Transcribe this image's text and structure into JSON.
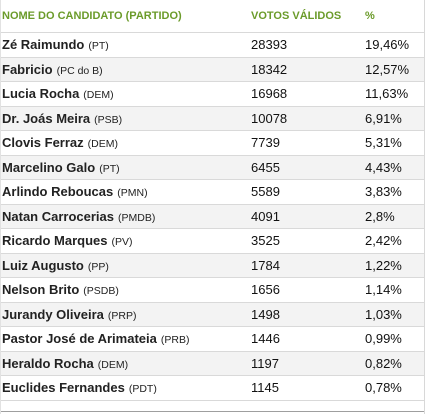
{
  "header": {
    "name": "NOME DO CANDIDATO (PARTIDO)",
    "votes": "VOTOS VÁLIDOS",
    "pct": "%"
  },
  "rows": [
    {
      "name": "Zé Raimundo",
      "party": "(PT)",
      "votes": "28393",
      "pct": "19,46%"
    },
    {
      "name": "Fabricio",
      "party": "(PC do B)",
      "votes": "18342",
      "pct": "12,57%"
    },
    {
      "name": "Lucia Rocha",
      "party": "(DEM)",
      "votes": "16968",
      "pct": "11,63%"
    },
    {
      "name": "Dr. Joás Meira",
      "party": "(PSB)",
      "votes": "10078",
      "pct": "6,91%"
    },
    {
      "name": "Clovis Ferraz",
      "party": "(DEM)",
      "votes": "7739",
      "pct": "5,31%"
    },
    {
      "name": "Marcelino Galo",
      "party": "(PT)",
      "votes": "6455",
      "pct": "4,43%"
    },
    {
      "name": "Arlindo Reboucas",
      "party": "(PMN)",
      "votes": "5589",
      "pct": "3,83%"
    },
    {
      "name": "Natan Carrocerias",
      "party": "(PMDB)",
      "votes": "4091",
      "pct": "2,8%"
    },
    {
      "name": "Ricardo Marques",
      "party": "(PV)",
      "votes": "3525",
      "pct": "2,42%"
    },
    {
      "name": "Luiz Augusto",
      "party": "(PP)",
      "votes": "1784",
      "pct": "1,22%"
    },
    {
      "name": "Nelson Brito",
      "party": "(PSDB)",
      "votes": "1656",
      "pct": "1,14%"
    },
    {
      "name": "Jurandy Oliveira",
      "party": "(PRP)",
      "votes": "1498",
      "pct": "1,03%"
    },
    {
      "name": "Pastor José de Arimateia",
      "party": "(PRB)",
      "votes": "1446",
      "pct": "0,99%"
    },
    {
      "name": "Heraldo Rocha",
      "party": "(DEM)",
      "votes": "1197",
      "pct": "0,82%"
    },
    {
      "name": "Euclides Fernandes",
      "party": "(PDT)",
      "votes": "1145",
      "pct": "0,78%"
    }
  ],
  "colors": {
    "header_text": "#6b9b2a",
    "row_alt": "#f3f3f3",
    "divider": "#d9d9d9"
  }
}
